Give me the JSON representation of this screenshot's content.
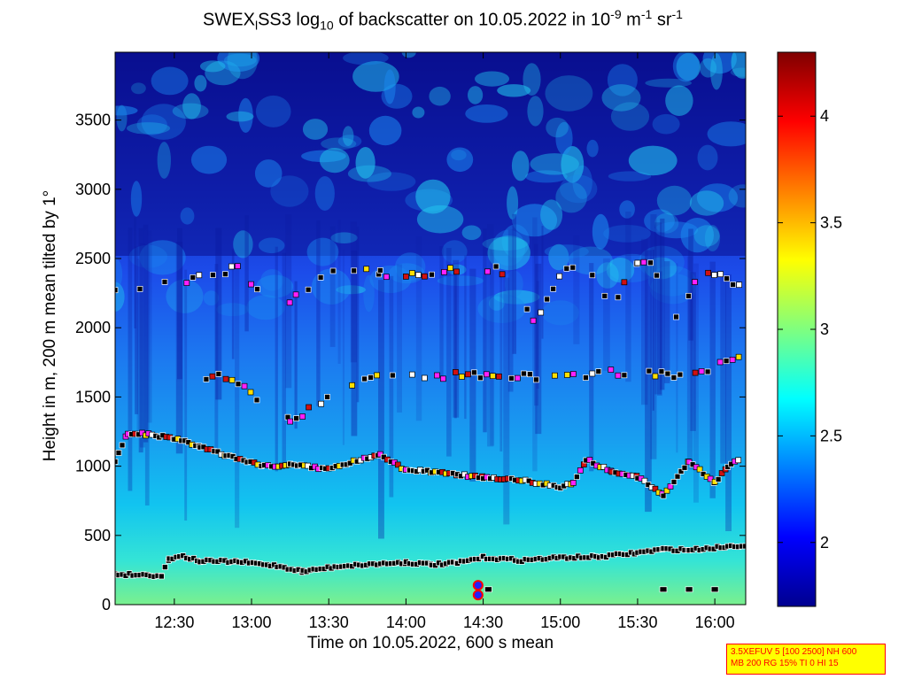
{
  "title": {
    "prefix": "SWEX",
    "prefix_sub": "l",
    "mid": "SS3 log",
    "log_sub": "10",
    "desc": " of backscatter on 10.05.2022 in 10",
    "exp1": "-9",
    "unit_m": " m",
    "exp2": "-1",
    "unit_sr": " sr",
    "exp3": "-1"
  },
  "info_box": [
    "3.5XEFUV 5 [100 2500] NH 600",
    "MB 200 RG 15% TI 0 HI 15"
  ],
  "chart_data": {
    "type": "heatmap",
    "xlabel": "Time on 10.05.2022, 600 s mean",
    "ylabel": "Height in m, 200 m mean tilted by 1°",
    "x_range": [
      "12:07",
      "16:12"
    ],
    "ylim": [
      0,
      3990
    ],
    "x_ticks": [
      "12:30",
      "13:00",
      "13:30",
      "14:00",
      "14:30",
      "15:00",
      "15:30",
      "16:00"
    ],
    "y_ticks": [
      0,
      500,
      1000,
      1500,
      2000,
      2500,
      3000,
      3500
    ],
    "colorbar": {
      "range": [
        1.7,
        4.3
      ],
      "ticks": [
        2,
        2.5,
        3,
        3.5,
        4
      ],
      "colormap": "jet"
    },
    "field_description": "log10 backscatter high (about 2.9) near the ground, decreasing upward to about 1.8 above 2500 m, with patchy cyan features aloft",
    "layers": [
      {
        "name": "surface-layer",
        "points": [
          [
            "12:07",
            220
          ],
          [
            "12:18",
            215
          ],
          [
            "12:25",
            210
          ],
          [
            "12:28",
            330
          ],
          [
            "12:32",
            355
          ],
          [
            "12:40",
            315
          ],
          [
            "12:55",
            310
          ],
          [
            "13:10",
            280
          ],
          [
            "13:20",
            240
          ],
          [
            "13:35",
            280
          ],
          [
            "14:00",
            305
          ],
          [
            "14:10",
            290
          ],
          [
            "14:20",
            300
          ],
          [
            "14:30",
            340
          ],
          [
            "14:45",
            320
          ],
          [
            "15:00",
            340
          ],
          [
            "15:15",
            345
          ],
          [
            "15:30",
            375
          ],
          [
            "15:40",
            400
          ],
          [
            "15:50",
            395
          ],
          [
            "16:05",
            420
          ],
          [
            "16:12",
            430
          ]
        ]
      },
      {
        "name": "lower-cloud-layer",
        "points": [
          [
            "12:07",
            1040
          ],
          [
            "12:12",
            1240
          ],
          [
            "12:20",
            1230
          ],
          [
            "12:30",
            1200
          ],
          [
            "12:40",
            1140
          ],
          [
            "12:50",
            1080
          ],
          [
            "13:05",
            1000
          ],
          [
            "13:15",
            1010
          ],
          [
            "13:30",
            980
          ],
          [
            "13:45",
            1060
          ],
          [
            "13:50",
            1090
          ],
          [
            "14:00",
            970
          ],
          [
            "14:10",
            960
          ],
          [
            "14:20",
            940
          ],
          [
            "14:30",
            920
          ],
          [
            "14:45",
            900
          ],
          [
            "15:00",
            850
          ],
          [
            "15:05",
            880
          ],
          [
            "15:10",
            1050
          ],
          [
            "15:20",
            960
          ],
          [
            "15:30",
            920
          ],
          [
            "15:40",
            790
          ],
          [
            "15:50",
            1040
          ],
          [
            "16:00",
            880
          ],
          [
            "16:05",
            1000
          ],
          [
            "16:10",
            1050
          ]
        ]
      },
      {
        "name": "mid-cloud-layer",
        "points": [
          [
            "12:40",
            1630
          ],
          [
            "12:50",
            1650
          ],
          [
            "13:15",
            1330
          ],
          [
            "13:50",
            1680
          ],
          [
            "14:00",
            1660
          ],
          [
            "15:10",
            1640
          ],
          [
            "15:20",
            1680
          ],
          [
            "15:50",
            1650
          ],
          [
            "16:10",
            1800
          ]
        ]
      },
      {
        "name": "upper-cloud-layer",
        "points": [
          [
            "12:07",
            2250
          ],
          [
            "12:30",
            2320
          ],
          [
            "12:45",
            2380
          ],
          [
            "12:55",
            2440
          ],
          [
            "13:10",
            2120
          ],
          [
            "13:35",
            2450
          ],
          [
            "13:50",
            2390
          ],
          [
            "14:00",
            2370
          ],
          [
            "14:10",
            2400
          ],
          [
            "14:35",
            2430
          ],
          [
            "14:50",
            2050
          ],
          [
            "15:00",
            2400
          ],
          [
            "15:10",
            2460
          ],
          [
            "15:20",
            2170
          ],
          [
            "15:30",
            2480
          ],
          [
            "15:35",
            2460
          ],
          [
            "15:45",
            2080
          ],
          [
            "15:55",
            2420
          ],
          [
            "16:10",
            2300
          ]
        ]
      }
    ],
    "low_markers": [
      [
        "14:28",
        140
      ],
      [
        "14:28",
        70
      ],
      [
        "14:32",
        110
      ],
      [
        "15:40",
        110
      ],
      [
        "15:50",
        110
      ],
      [
        "16:00",
        110
      ]
    ]
  },
  "colors": {
    "layer_marker": "#000000",
    "low_marker_fill": "#2020ff",
    "low_marker_ring": "#ff0000",
    "info_bg": "#ffff00",
    "info_text": "#ff0000"
  }
}
